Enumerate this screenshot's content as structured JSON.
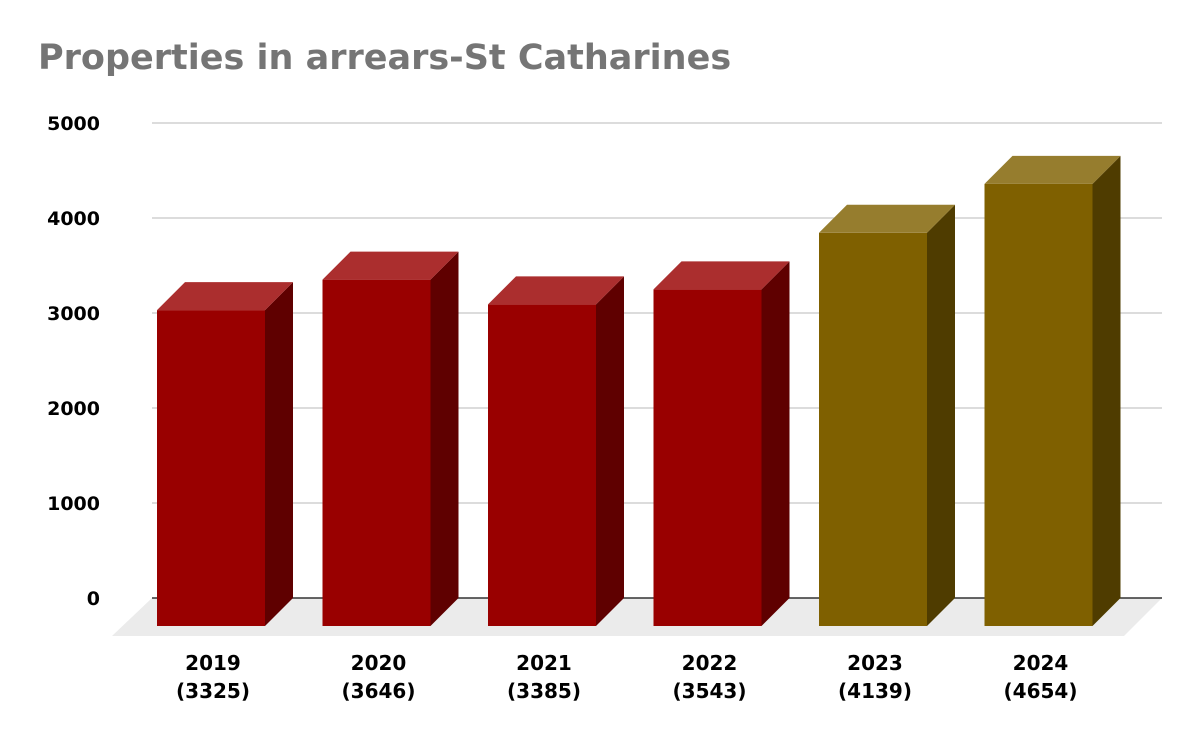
{
  "chart_data": {
    "type": "bar",
    "title": "Properties in arrears-St Catharines",
    "xlabel": "",
    "ylabel": "",
    "categories": [
      "2019\n(3325)",
      "2020\n(3646)",
      "2021\n(3385)",
      "2022\n(3543)",
      "2023\n(4139)",
      "2024\n(4654)"
    ],
    "values": [
      3325,
      3646,
      3385,
      3543,
      4139,
      4654
    ],
    "bar_colors": [
      "#990000",
      "#990000",
      "#990000",
      "#990000",
      "#7f6000",
      "#7f6000"
    ],
    "ylim": [
      0,
      5000
    ],
    "yticks": [
      0,
      1000,
      2000,
      3000,
      4000,
      5000
    ],
    "grid": true,
    "legend": "none",
    "style": "3d-column"
  }
}
